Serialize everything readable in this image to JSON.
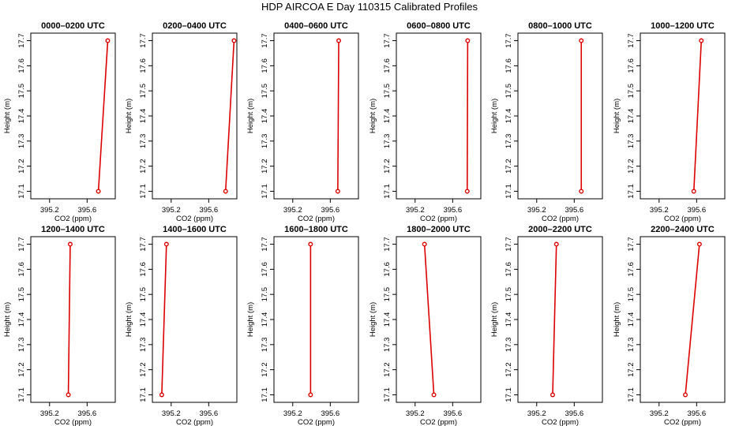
{
  "title": "HDP AIRCOA E  Day 110315  Calibrated Profiles",
  "chart_data": {
    "type": "line",
    "xlabel": "CO2 (ppm)",
    "ylabel": "Height (m)",
    "xlim": [
      395.0,
      395.9
    ],
    "ylim": [
      17.07,
      17.73
    ],
    "xticks": [
      395.2,
      395.6
    ],
    "yticks": [
      17.1,
      17.2,
      17.3,
      17.4,
      17.5,
      17.6,
      17.7
    ],
    "grid": false,
    "panels": [
      {
        "title": "0000–0200 UTC",
        "points": [
          {
            "x": 395.72,
            "y": 17.1
          },
          {
            "x": 395.82,
            "y": 17.7
          }
        ]
      },
      {
        "title": "0200–0400 UTC",
        "points": [
          {
            "x": 395.78,
            "y": 17.1
          },
          {
            "x": 395.87,
            "y": 17.7
          }
        ]
      },
      {
        "title": "0400–0600 UTC",
        "points": [
          {
            "x": 395.68,
            "y": 17.1
          },
          {
            "x": 395.69,
            "y": 17.7
          }
        ]
      },
      {
        "title": "0600–0800 UTC",
        "points": [
          {
            "x": 395.755,
            "y": 17.1
          },
          {
            "x": 395.76,
            "y": 17.7
          }
        ]
      },
      {
        "title": "0800–1000 UTC",
        "points": [
          {
            "x": 395.675,
            "y": 17.1
          },
          {
            "x": 395.675,
            "y": 17.7
          }
        ]
      },
      {
        "title": "1000–1200 UTC",
        "points": [
          {
            "x": 395.57,
            "y": 17.1
          },
          {
            "x": 395.65,
            "y": 17.7
          }
        ]
      },
      {
        "title": "1200–1400 UTC",
        "points": [
          {
            "x": 395.4,
            "y": 17.1
          },
          {
            "x": 395.42,
            "y": 17.7
          }
        ]
      },
      {
        "title": "1400–1600 UTC",
        "points": [
          {
            "x": 395.1,
            "y": 17.1
          },
          {
            "x": 395.15,
            "y": 17.7
          }
        ]
      },
      {
        "title": "1600–1800 UTC",
        "points": [
          {
            "x": 395.39,
            "y": 17.1
          },
          {
            "x": 395.39,
            "y": 17.7
          }
        ]
      },
      {
        "title": "1800–2000 UTC",
        "points": [
          {
            "x": 395.4,
            "y": 17.1
          },
          {
            "x": 395.3,
            "y": 17.7
          }
        ]
      },
      {
        "title": "2000–2200 UTC",
        "points": [
          {
            "x": 395.37,
            "y": 17.1
          },
          {
            "x": 395.41,
            "y": 17.7
          }
        ]
      },
      {
        "title": "2200–2400 UTC",
        "points": [
          {
            "x": 395.48,
            "y": 17.1
          },
          {
            "x": 395.63,
            "y": 17.7
          }
        ]
      }
    ]
  },
  "colors": {
    "profile": "#dd0000"
  }
}
